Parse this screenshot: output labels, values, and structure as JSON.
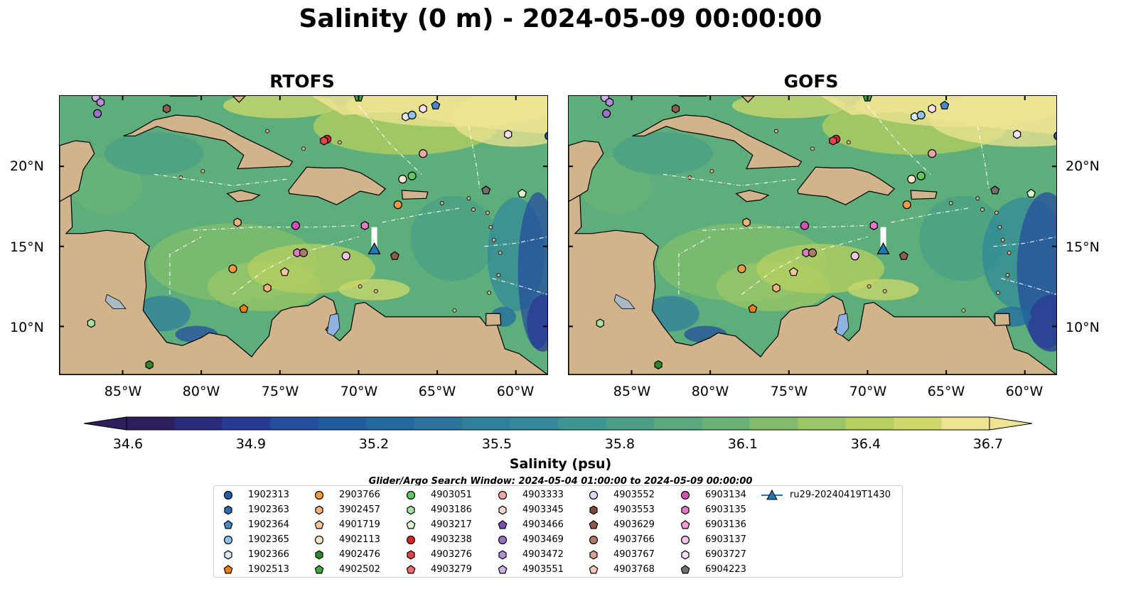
{
  "title": "Salinity (0 m) - 2024-05-09 00:00:00",
  "panels": [
    {
      "title": "RTOFS"
    },
    {
      "title": "GOFS"
    }
  ],
  "lon_labels": [
    "85°W",
    "80°W",
    "75°W",
    "70°W",
    "65°W",
    "60°W"
  ],
  "lat_labels": [
    "20°N",
    "15°N",
    "10°N"
  ],
  "colorbar": {
    "ticks": [
      "34.6",
      "34.9",
      "35.2",
      "35.5",
      "35.8",
      "36.1",
      "36.4",
      "36.7"
    ],
    "label": "Salinity (psu)",
    "colors": [
      "#2d1e5e",
      "#2b2a7d",
      "#2a3a93",
      "#244d9d",
      "#1f5d9e",
      "#22699f",
      "#2a749f",
      "#2f7f9d",
      "#338a98",
      "#3b9590",
      "#4a9f86",
      "#58a97e",
      "#6ab378",
      "#82bd6e",
      "#9bc665",
      "#b6cf60",
      "#cfd86b",
      "#ede393"
    ]
  },
  "search_window": "Glider/Argo Search Window: 2024-05-04 01:00:00 to 2024-05-09 00:00:00",
  "legend": [
    {
      "label": "1902313",
      "color": "#1f5fa8",
      "shape": "circle"
    },
    {
      "label": "1902363",
      "color": "#2f6fb0",
      "shape": "hexagon"
    },
    {
      "label": "1902364",
      "color": "#4a8ac4",
      "shape": "pentagon"
    },
    {
      "label": "1902365",
      "color": "#8ec2ea",
      "shape": "circle"
    },
    {
      "label": "1902366",
      "color": "#d6ecfa",
      "shape": "hexagon"
    },
    {
      "label": "1902513",
      "color": "#f07d10",
      "shape": "pentagon"
    },
    {
      "label": "2903766",
      "color": "#f39a3f",
      "shape": "circle"
    },
    {
      "label": "3902457",
      "color": "#f5b27a",
      "shape": "hexagon"
    },
    {
      "label": "4901719",
      "color": "#f8c89c",
      "shape": "pentagon"
    },
    {
      "label": "4902113",
      "color": "#fde3c8",
      "shape": "circle"
    },
    {
      "label": "4902476",
      "color": "#2a8a2a",
      "shape": "hexagon"
    },
    {
      "label": "4902502",
      "color": "#3ba83b",
      "shape": "pentagon"
    },
    {
      "label": "4903051",
      "color": "#5fc85f",
      "shape": "circle"
    },
    {
      "label": "4903186",
      "color": "#a6e3a0",
      "shape": "hexagon"
    },
    {
      "label": "4903217",
      "color": "#d8f5d0",
      "shape": "pentagon"
    },
    {
      "label": "4903238",
      "color": "#d62728",
      "shape": "circle"
    },
    {
      "label": "4903276",
      "color": "#e0474a",
      "shape": "hexagon"
    },
    {
      "label": "4903279",
      "color": "#eb6a6b",
      "shape": "pentagon"
    },
    {
      "label": "4903333",
      "color": "#f5a6a3",
      "shape": "circle"
    },
    {
      "label": "4903345",
      "color": "#fcd3cf",
      "shape": "hexagon"
    },
    {
      "label": "4903466",
      "color": "#7b4fb0",
      "shape": "pentagon"
    },
    {
      "label": "4903469",
      "color": "#9a70c8",
      "shape": "circle"
    },
    {
      "label": "4903472",
      "color": "#b38fd8",
      "shape": "hexagon"
    },
    {
      "label": "4903551",
      "color": "#cbb0e8",
      "shape": "pentagon"
    },
    {
      "label": "4903552",
      "color": "#e6d6f5",
      "shape": "circle"
    },
    {
      "label": "4903553",
      "color": "#7a4a3a",
      "shape": "hexagon"
    },
    {
      "label": "4903629",
      "color": "#8f5a48",
      "shape": "pentagon"
    },
    {
      "label": "4903766",
      "color": "#b07a6a",
      "shape": "circle"
    },
    {
      "label": "4903767",
      "color": "#d3a393",
      "shape": "hexagon"
    },
    {
      "label": "4903768",
      "color": "#efcbbf",
      "shape": "pentagon"
    },
    {
      "label": "6903134",
      "color": "#d64fb8",
      "shape": "circle"
    },
    {
      "label": "6903135",
      "color": "#e37ac8",
      "shape": "hexagon"
    },
    {
      "label": "6903136",
      "color": "#ee9fd8",
      "shape": "pentagon"
    },
    {
      "label": "6903137",
      "color": "#f6c2e6",
      "shape": "circle"
    },
    {
      "label": "6903727",
      "color": "#fbe0f2",
      "shape": "hexagon"
    },
    {
      "label": "6904223",
      "color": "#707070",
      "shape": "pentagon"
    },
    {
      "label": "ru29-20240419T1430",
      "color": "#1f77b4",
      "shape": "glider"
    }
  ],
  "markers": [
    {
      "lon": -86.7,
      "lat": 24.3,
      "color": "#cbb0e8",
      "shape": "circle"
    },
    {
      "lon": -86.4,
      "lat": 24.0,
      "color": "#b38fd8",
      "shape": "hexagon"
    },
    {
      "lon": -86.6,
      "lat": 23.3,
      "color": "#9a70c8",
      "shape": "circle"
    },
    {
      "lon": -82.2,
      "lat": 23.6,
      "color": "#8f5a48",
      "shape": "hexagon"
    },
    {
      "lon": -70.0,
      "lat": 24.3,
      "color": "#3ba83b",
      "shape": "pentagon"
    },
    {
      "lon": -67.0,
      "lat": 23.1,
      "color": "#d6ecfa",
      "shape": "hexagon"
    },
    {
      "lon": -66.6,
      "lat": 23.2,
      "color": "#8ec2ea",
      "shape": "circle"
    },
    {
      "lon": -65.9,
      "lat": 23.6,
      "color": "#fbe0f2",
      "shape": "hexagon"
    },
    {
      "lon": -65.1,
      "lat": 23.8,
      "color": "#4a8ac4",
      "shape": "pentagon"
    },
    {
      "lon": -72.0,
      "lat": 21.7,
      "color": "#d62728",
      "shape": "circle"
    },
    {
      "lon": -72.2,
      "lat": 21.6,
      "color": "#e0474a",
      "shape": "hexagon"
    },
    {
      "lon": -65.9,
      "lat": 20.8,
      "color": "#f5a6a3",
      "shape": "circle"
    },
    {
      "lon": -60.5,
      "lat": 22.0,
      "color": "#fbe0f2",
      "shape": "hexagon"
    },
    {
      "lon": -57.9,
      "lat": 21.9,
      "color": "#1f5fa8",
      "shape": "circle"
    },
    {
      "lon": -67.2,
      "lat": 19.2,
      "color": "#fde3c8",
      "shape": "circle"
    },
    {
      "lon": -66.6,
      "lat": 19.4,
      "color": "#5fc85f",
      "shape": "circle"
    },
    {
      "lon": -67.5,
      "lat": 17.6,
      "color": "#f39a3f",
      "shape": "circle"
    },
    {
      "lon": -61.9,
      "lat": 18.5,
      "color": "#707070",
      "shape": "pentagon"
    },
    {
      "lon": -59.6,
      "lat": 18.3,
      "color": "#d8f5d0",
      "shape": "pentagon"
    },
    {
      "lon": -77.7,
      "lat": 16.5,
      "color": "#f5b27a",
      "shape": "hexagon"
    },
    {
      "lon": -74.0,
      "lat": 16.3,
      "color": "#d64fb8",
      "shape": "circle"
    },
    {
      "lon": -69.6,
      "lat": 16.3,
      "color": "#e37ac8",
      "shape": "hexagon"
    },
    {
      "lon": -73.9,
      "lat": 14.6,
      "color": "#e37ac8",
      "shape": "hexagon"
    },
    {
      "lon": -73.5,
      "lat": 14.6,
      "color": "#b07a6a",
      "shape": "circle"
    },
    {
      "lon": -70.8,
      "lat": 14.4,
      "color": "#f6c2e6",
      "shape": "circle"
    },
    {
      "lon": -67.7,
      "lat": 14.4,
      "color": "#8f5a48",
      "shape": "pentagon"
    },
    {
      "lon": -78.0,
      "lat": 13.6,
      "color": "#f39a3f",
      "shape": "circle"
    },
    {
      "lon": -74.7,
      "lat": 13.4,
      "color": "#f8c89c",
      "shape": "pentagon"
    },
    {
      "lon": -75.8,
      "lat": 12.4,
      "color": "#f5b27a",
      "shape": "hexagon"
    },
    {
      "lon": -77.3,
      "lat": 11.1,
      "color": "#f07d10",
      "shape": "pentagon"
    },
    {
      "lon": -87.0,
      "lat": 10.2,
      "color": "#a6e3a0",
      "shape": "hexagon"
    },
    {
      "lon": -83.3,
      "lat": 7.6,
      "color": "#2a8a2a",
      "shape": "hexagon"
    }
  ],
  "glider": {
    "lon": -69.0,
    "lat": 14.8,
    "color": "#1f77b4",
    "track_lat_end": 16.2
  }
}
